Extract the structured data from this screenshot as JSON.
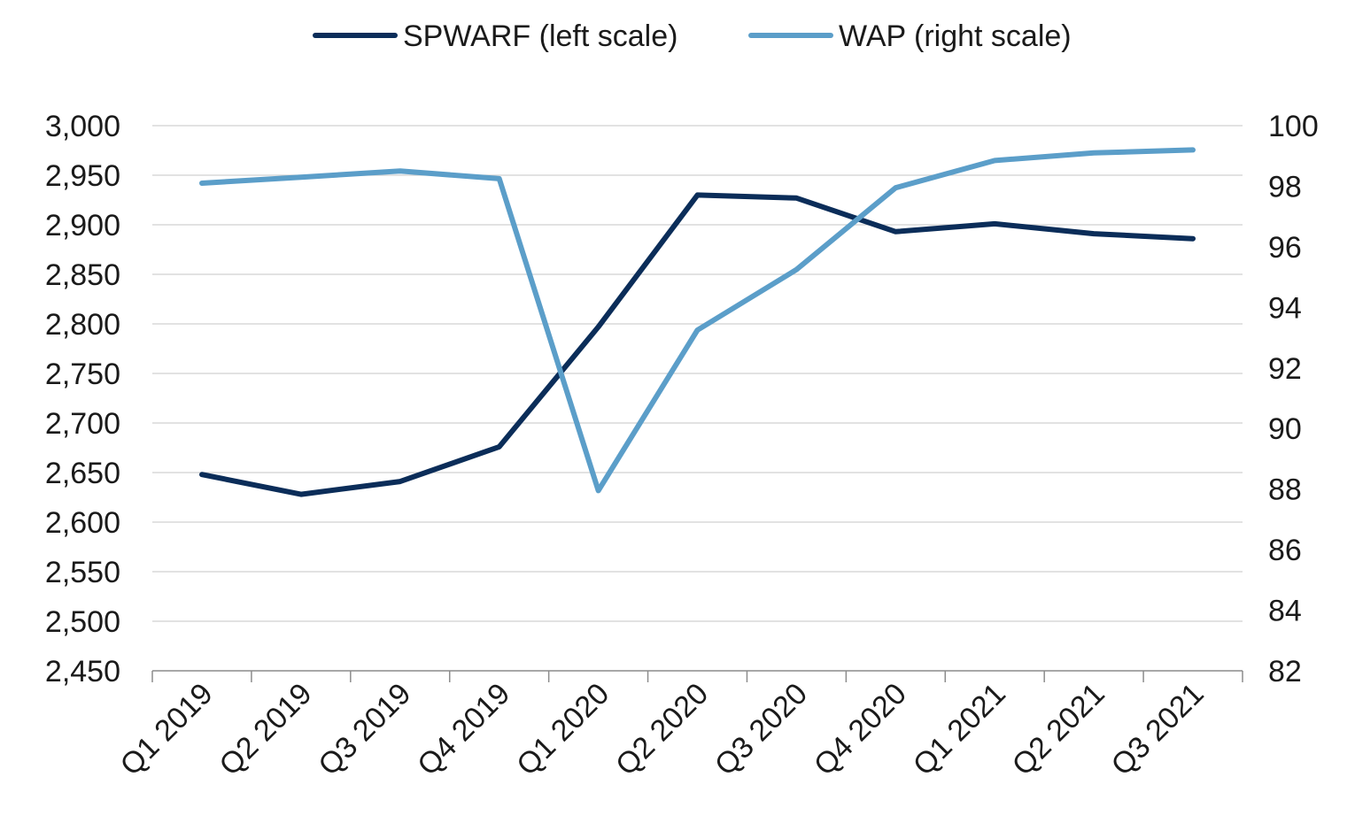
{
  "chart_data": {
    "type": "line",
    "title": "",
    "xlabel": "",
    "ylabel": "",
    "y2label": "",
    "categories": [
      "Q1 2019",
      "Q2 2019",
      "Q3 2019",
      "Q4 2019",
      "Q1 2020",
      "Q2 2020",
      "Q3 2020",
      "Q4 2020",
      "Q1 2021",
      "Q2 2021",
      "Q3 2021"
    ],
    "series": [
      {
        "name": "SPWARF (left scale)",
        "axis": "left",
        "color": "#0b2d59",
        "values": [
          2648,
          2628,
          2641,
          2676,
          2797,
          2930,
          2927,
          2893,
          2901,
          2891,
          2886
        ]
      },
      {
        "name": "WAP (right scale)",
        "axis": "right",
        "color": "#5b9ec9",
        "values": [
          98.1,
          98.3,
          98.5,
          98.25,
          87.95,
          93.25,
          95.25,
          97.95,
          98.85,
          99.1,
          99.2
        ]
      }
    ],
    "ylim_left": [
      2450,
      3000
    ],
    "yticks_left": [
      "2,450",
      "2,500",
      "2,550",
      "2,600",
      "2,650",
      "2,700",
      "2,750",
      "2,800",
      "2,850",
      "2,900",
      "2,950",
      "3,000"
    ],
    "ylim_right": [
      82,
      100
    ],
    "yticks_right": [
      "82",
      "84",
      "86",
      "88",
      "90",
      "92",
      "94",
      "96",
      "98",
      "100"
    ],
    "grid": "horizontal",
    "legend_position": "top-center"
  }
}
